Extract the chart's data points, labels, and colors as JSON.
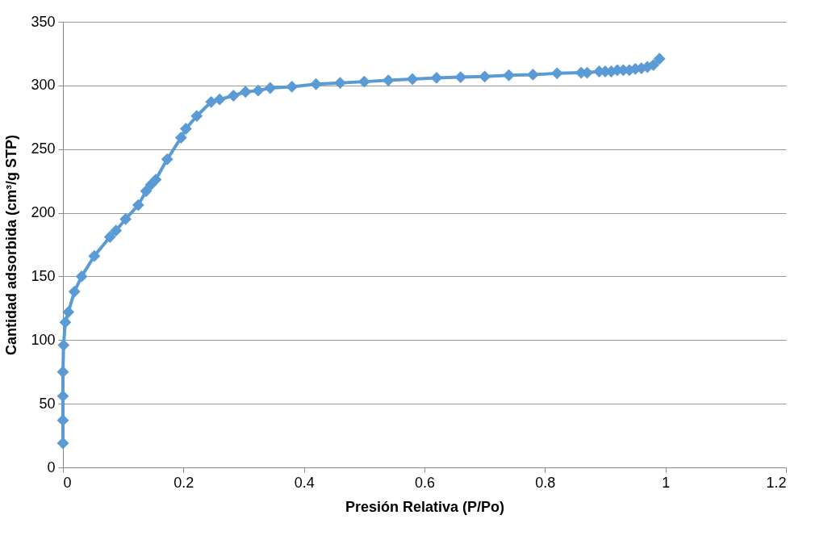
{
  "chart_data": {
    "type": "line",
    "xlabel": "Presión Relativa (P/Po)",
    "ylabel": "Cantidad adsorbida (cm³/g STP)",
    "x": [
      0,
      0,
      0,
      0,
      0.001,
      0.004,
      0.009,
      0.019,
      0.031,
      0.052,
      0.078,
      0.088,
      0.104,
      0.125,
      0.138,
      0.146,
      0.154,
      0.173,
      0.196,
      0.204,
      0.222,
      0.246,
      0.26,
      0.283,
      0.303,
      0.324,
      0.344,
      0.38,
      0.42,
      0.46,
      0.5,
      0.54,
      0.58,
      0.62,
      0.66,
      0.7,
      0.74,
      0.78,
      0.82,
      0.86,
      0.87,
      0.89,
      0.9,
      0.91,
      0.92,
      0.93,
      0.94,
      0.95,
      0.96,
      0.97,
      0.98,
      0.99
    ],
    "series": [
      {
        "color": "#5b9bd5",
        "values": [
          19,
          37,
          56,
          75,
          96,
          114,
          122,
          138,
          150,
          166,
          181,
          186,
          195,
          206,
          217,
          222,
          226,
          242,
          259,
          266,
          276,
          287,
          289,
          292,
          295,
          296,
          298,
          299,
          301,
          302,
          303,
          304,
          305,
          306,
          306.5,
          307,
          308,
          308.5,
          309.5,
          310,
          310,
          311,
          311,
          311,
          312,
          312,
          312,
          313,
          313.5,
          314.5,
          316,
          321
        ]
      }
    ],
    "xlim": [
      0,
      1.2
    ],
    "xticks": [
      0,
      0.2,
      0.4,
      0.6,
      0.8,
      1,
      1.2
    ],
    "ylim": [
      0,
      350
    ],
    "yticks": [
      0,
      50,
      100,
      150,
      200,
      250,
      300,
      350
    ],
    "grid": "y",
    "marker": "diamond",
    "line_style": "solid"
  }
}
